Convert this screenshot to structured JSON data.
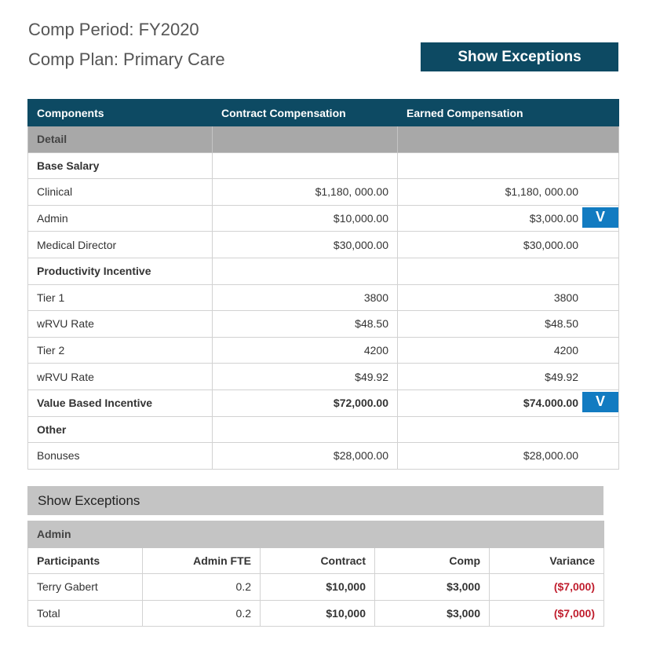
{
  "header": {
    "comp_period": "Comp Period: FY2020",
    "comp_plan": "Comp Plan: Primary Care",
    "show_exceptions_button": "Show Exceptions"
  },
  "comp_table": {
    "columns": [
      "Components",
      "Contract Compensation",
      "Earned Compensation"
    ],
    "detail_label": "Detail",
    "rows": [
      {
        "label": "Base Salary",
        "contract": "",
        "earned": ""
      },
      {
        "label": "Clinical",
        "contract": "$1,180, 000.00",
        "earned": "$1,180, 000.00"
      },
      {
        "label": "Admin",
        "contract": "$10,000.00",
        "earned": "$3,000.00",
        "action": "V"
      },
      {
        "label": "Medical Director",
        "contract": "$30,000.00",
        "earned": "$30,000.00"
      },
      {
        "label": "Productivity Incentive",
        "contract": "",
        "earned": ""
      },
      {
        "label": "Tier 1",
        "contract": "3800",
        "earned": "3800"
      },
      {
        "label": "wRVU Rate",
        "contract": "$48.50",
        "earned": "$48.50"
      },
      {
        "label": "Tier 2",
        "contract": "4200",
        "earned": "4200"
      },
      {
        "label": "wRVU Rate",
        "contract": "$49.92",
        "earned": "$49.92"
      },
      {
        "label": "Value Based Incentive",
        "contract": "$72,000.00",
        "earned": "$74.000.00",
        "action": "V"
      },
      {
        "label": "Other",
        "contract": "",
        "earned": ""
      },
      {
        "label": "Bonuses",
        "contract": "$28,000.00",
        "earned": "$28,000.00"
      }
    ]
  },
  "exceptions": {
    "heading": "Show Exceptions",
    "section_label": "Admin",
    "columns": [
      "Participants",
      "Admin FTE",
      "Contract",
      "Comp",
      "Variance"
    ],
    "rows": [
      {
        "participant": "Terry Gabert",
        "fte": "0.2",
        "contract": "$10,000",
        "comp": "$3,000",
        "variance": "($7,000)"
      },
      {
        "participant": "Total",
        "fte": "0.2",
        "contract": "$10,000",
        "comp": "$3,000",
        "variance": "($7,000)"
      }
    ]
  },
  "colors": {
    "header_teal": "#0d4a63",
    "action_blue": "#127bc1",
    "detail_gray": "#a8a8a8",
    "negative_red": "#c01e2e"
  }
}
